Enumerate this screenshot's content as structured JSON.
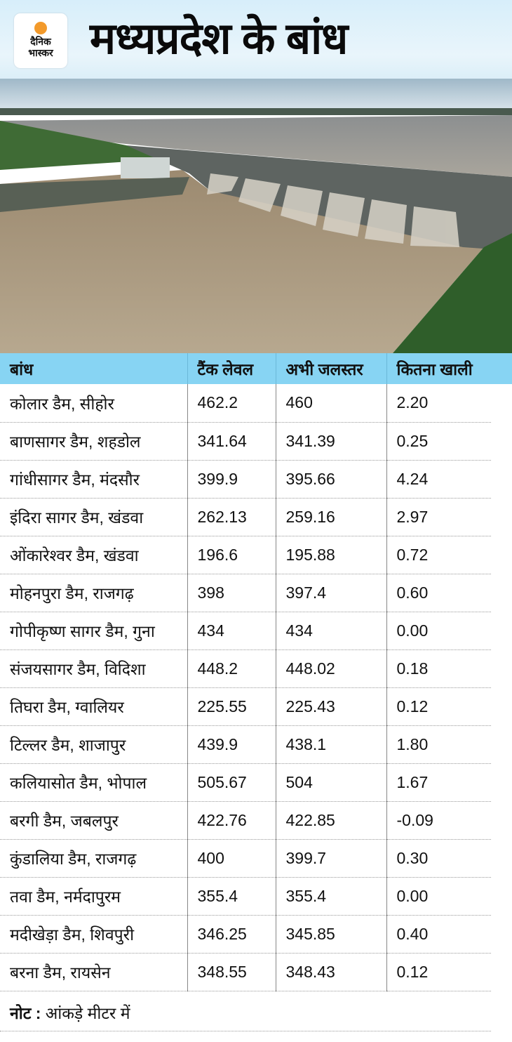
{
  "header": {
    "logo_line1": "दैनिक",
    "logo_line2": "भास्कर",
    "title": "मध्यप्रदेश के बांध"
  },
  "table": {
    "columns": [
      "बांध",
      "टैंक लेवल",
      "अभी जलस्तर",
      "कितना खाली"
    ],
    "rows": [
      [
        "कोलार डैम, सीहोर",
        "462.2",
        "460",
        "2.20"
      ],
      [
        "बाणसागर डैम, शहडोल",
        "341.64",
        "341.39",
        "0.25"
      ],
      [
        "गांधीसागर डैम, मंदसौर",
        "399.9",
        "395.66",
        "4.24"
      ],
      [
        "इंदिरा सागर डैम, खंडवा",
        "262.13",
        "259.16",
        "2.97"
      ],
      [
        "ओंकारेश्वर डैम, खंडवा",
        "196.6",
        "195.88",
        "0.72"
      ],
      [
        "मोहनपुरा डैम, राजगढ़",
        "398",
        "397.4",
        "0.60"
      ],
      [
        "गोपीकृष्ण सागर डैम, गुना",
        "434",
        "434",
        "0.00"
      ],
      [
        "संजयसागर डैम, विदिशा",
        "448.2",
        "448.02",
        "0.18"
      ],
      [
        "तिघरा डैम, ग्वालियर",
        "225.55",
        "225.43",
        "0.12"
      ],
      [
        "टिल्लर डैम, शाजापुर",
        "439.9",
        "438.1",
        "1.80"
      ],
      [
        "कलियासोत डैम, भोपाल",
        "505.67",
        "504",
        "1.67"
      ],
      [
        "बरगी डैम, जबलपुर",
        "422.76",
        "422.85",
        "-0.09"
      ],
      [
        "कुंडालिया डैम, राजगढ़",
        "400",
        "399.7",
        "0.30"
      ],
      [
        "तवा डैम, नर्मदापुरम",
        "355.4",
        "355.4",
        "0.00"
      ],
      [
        "मदीखेड़ा डैम, शिवपुरी",
        "346.25",
        "345.85",
        "0.40"
      ],
      [
        "बरना डैम, रायसेन",
        "348.55",
        "348.43",
        "0.12"
      ]
    ]
  },
  "note": {
    "label": "नोट :",
    "text": " आंकड़े मीटर में"
  },
  "colors": {
    "header_row": "#87d4f3",
    "logo_sun": "#f39a2b"
  }
}
